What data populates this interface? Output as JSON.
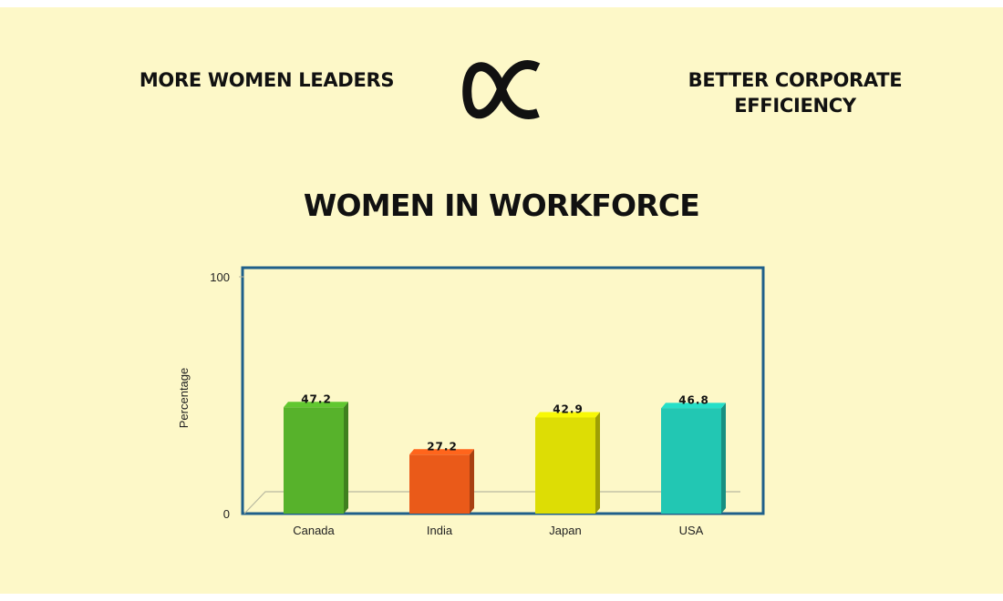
{
  "header": {
    "left_statement": "MORE WOMEN LEADERS",
    "right_statement": "BETTER CORPORATE EFFICIENCY",
    "symbol_icon": "proportional-to-icon"
  },
  "colors": {
    "background": "#fdf8c8",
    "plot_border": "#1f5f8a",
    "text": "#111111"
  },
  "chart_data": {
    "type": "bar",
    "title": "WOMEN IN WORKFORCE",
    "xlabel": "",
    "ylabel": "Percentage",
    "ylim": [
      0,
      100
    ],
    "yticks": [
      "0",
      "100"
    ],
    "categories": [
      "Canada",
      "India",
      "Japan",
      "USA"
    ],
    "values": [
      47.2,
      27.2,
      42.9,
      46.8
    ],
    "value_labels": [
      "47.2",
      "27.2",
      "42.9",
      "46.8"
    ],
    "colors": [
      "#57b22b",
      "#ea5a19",
      "#dddd05",
      "#22c7b3"
    ],
    "grid": false,
    "legend": "none",
    "style": "3d"
  }
}
